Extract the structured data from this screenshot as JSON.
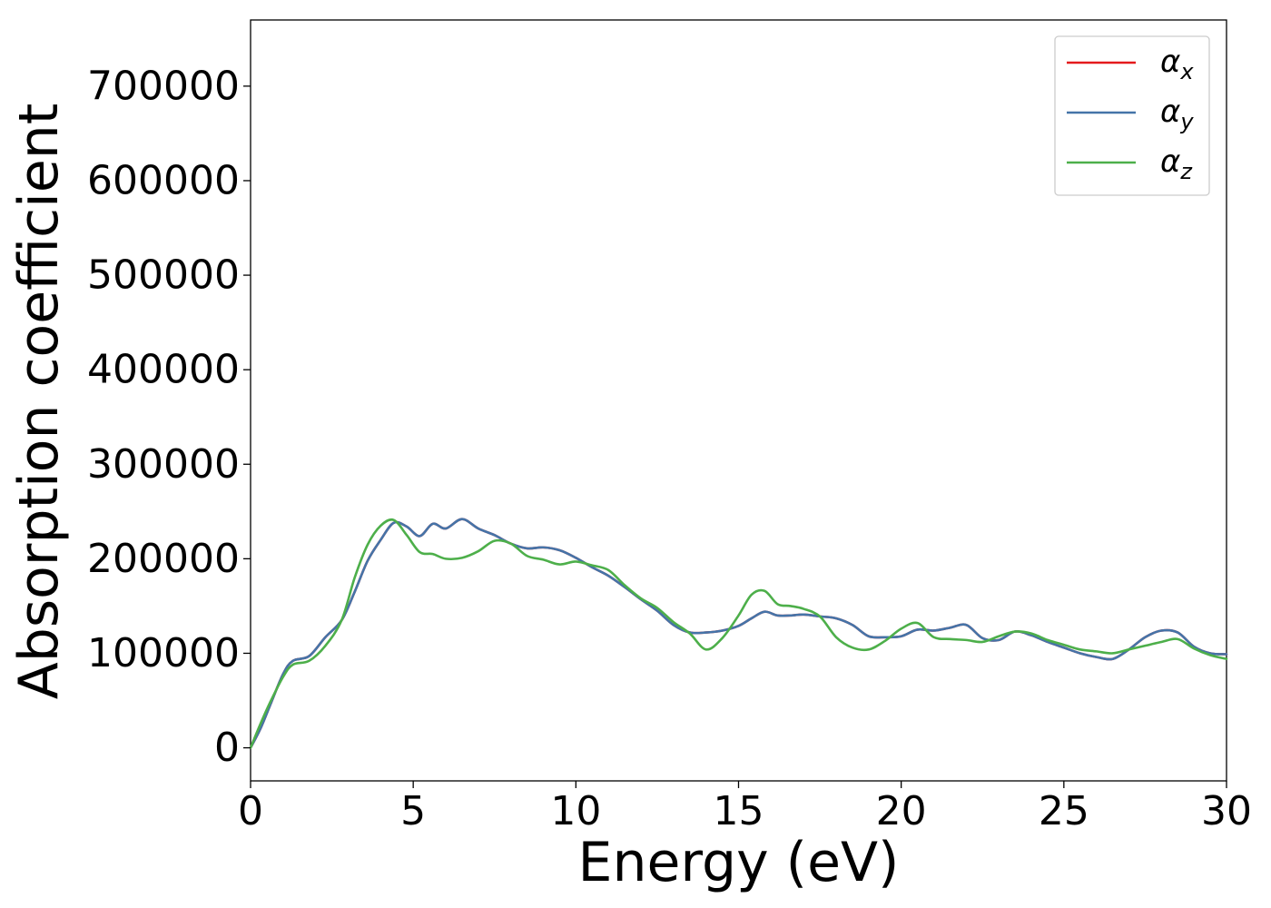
{
  "chart_data": {
    "type": "line",
    "title": "",
    "xlabel": "Energy (eV)",
    "ylabel": "Absorption coefficient",
    "xlim": [
      0,
      30
    ],
    "ylim": [
      -35000,
      770000
    ],
    "xticks": [
      0,
      5,
      10,
      15,
      20,
      25,
      30
    ],
    "xtick_labels": [
      "0",
      "5",
      "10",
      "15",
      "20",
      "25",
      "30"
    ],
    "yticks": [
      0,
      100000,
      200000,
      300000,
      400000,
      500000,
      600000,
      700000
    ],
    "ytick_labels": [
      "0",
      "100000",
      "200000",
      "300000",
      "400000",
      "500000",
      "600000",
      "700000"
    ],
    "grid": false,
    "legend_position": "top-right",
    "series": [
      {
        "name": "αx",
        "legend_main": "α",
        "legend_sub": "x",
        "color": "#e41a1c",
        "x": [
          0,
          0.3,
          0.6,
          1.0,
          1.3,
          1.8,
          2.3,
          2.8,
          3.2,
          3.6,
          4.0,
          4.4,
          4.8,
          5.2,
          5.6,
          6.0,
          6.5,
          7.0,
          7.5,
          8.0,
          8.5,
          9.0,
          9.5,
          10.0,
          10.5,
          11.0,
          11.5,
          12.0,
          12.5,
          13.0,
          13.5,
          14.0,
          14.5,
          15.0,
          15.4,
          15.8,
          16.2,
          16.6,
          17.0,
          17.5,
          18.0,
          18.5,
          19.0,
          19.5,
          20.0,
          20.5,
          21.0,
          21.5,
          22.0,
          22.5,
          23.0,
          23.5,
          24.0,
          24.5,
          25.0,
          25.5,
          26.0,
          26.5,
          27.0,
          27.5,
          28.0,
          28.5,
          29.0,
          29.5,
          30.0
        ],
        "values": [
          0,
          20000,
          45000,
          78000,
          92000,
          97000,
          117000,
          135000,
          165000,
          198000,
          220000,
          238000,
          234000,
          224000,
          237000,
          232000,
          242000,
          232000,
          225000,
          216000,
          211000,
          212000,
          209000,
          201000,
          191000,
          182000,
          170000,
          157000,
          145000,
          130000,
          122000,
          122000,
          124000,
          129000,
          137000,
          144000,
          140000,
          140000,
          141000,
          139000,
          137000,
          130000,
          118000,
          117000,
          118000,
          125000,
          124000,
          127000,
          130000,
          116000,
          114000,
          123000,
          119000,
          112000,
          106000,
          100000,
          96000,
          94000,
          104000,
          117000,
          124000,
          122000,
          107000,
          100000,
          99000
        ]
      },
      {
        "name": "αy",
        "legend_main": "α",
        "legend_sub": "y",
        "color": "#4574a8",
        "x": [
          0,
          0.3,
          0.6,
          1.0,
          1.3,
          1.8,
          2.3,
          2.8,
          3.2,
          3.6,
          4.0,
          4.4,
          4.8,
          5.2,
          5.6,
          6.0,
          6.5,
          7.0,
          7.5,
          8.0,
          8.5,
          9.0,
          9.5,
          10.0,
          10.5,
          11.0,
          11.5,
          12.0,
          12.5,
          13.0,
          13.5,
          14.0,
          14.5,
          15.0,
          15.4,
          15.8,
          16.2,
          16.6,
          17.0,
          17.5,
          18.0,
          18.5,
          19.0,
          19.5,
          20.0,
          20.5,
          21.0,
          21.5,
          22.0,
          22.5,
          23.0,
          23.5,
          24.0,
          24.5,
          25.0,
          25.5,
          26.0,
          26.5,
          27.0,
          27.5,
          28.0,
          28.5,
          29.0,
          29.5,
          30.0
        ],
        "values": [
          0,
          20000,
          45000,
          78000,
          92000,
          97000,
          117000,
          135000,
          165000,
          198000,
          220000,
          238000,
          234000,
          224000,
          237000,
          232000,
          242000,
          232000,
          225000,
          216000,
          211000,
          212000,
          209000,
          201000,
          191000,
          182000,
          170000,
          157000,
          145000,
          130000,
          122000,
          122000,
          124000,
          129000,
          137000,
          144000,
          140000,
          140000,
          141000,
          139000,
          137000,
          130000,
          118000,
          117000,
          118000,
          125000,
          124000,
          127000,
          130000,
          116000,
          114000,
          123000,
          119000,
          112000,
          106000,
          100000,
          96000,
          94000,
          104000,
          117000,
          124000,
          122000,
          107000,
          100000,
          99000
        ]
      },
      {
        "name": "αz",
        "legend_main": "α",
        "legend_sub": "z",
        "color": "#4daf4a",
        "x": [
          0,
          0.3,
          0.6,
          1.0,
          1.3,
          1.8,
          2.3,
          2.8,
          3.2,
          3.6,
          4.0,
          4.4,
          4.8,
          5.2,
          5.6,
          6.0,
          6.5,
          7.0,
          7.5,
          8.0,
          8.5,
          9.0,
          9.5,
          10.0,
          10.5,
          11.0,
          11.5,
          12.0,
          12.5,
          13.0,
          13.5,
          14.0,
          14.5,
          15.0,
          15.4,
          15.8,
          16.2,
          16.6,
          17.0,
          17.5,
          18.0,
          18.5,
          19.0,
          19.5,
          20.0,
          20.5,
          21.0,
          21.5,
          22.0,
          22.5,
          23.0,
          23.5,
          24.0,
          24.5,
          25.0,
          25.5,
          26.0,
          26.5,
          27.0,
          27.5,
          28.0,
          28.5,
          29.0,
          29.5,
          30.0
        ],
        "values": [
          0,
          25000,
          48000,
          75000,
          88000,
          92000,
          108000,
          135000,
          180000,
          215000,
          235000,
          241000,
          225000,
          207000,
          205000,
          200000,
          201000,
          208000,
          219000,
          216000,
          203000,
          199000,
          194000,
          197000,
          193000,
          188000,
          172000,
          158000,
          148000,
          133000,
          121000,
          104000,
          116000,
          140000,
          162000,
          166000,
          152000,
          150000,
          147000,
          139000,
          117000,
          106000,
          104000,
          113000,
          126000,
          132000,
          117000,
          115000,
          114000,
          112000,
          118000,
          123000,
          121000,
          114000,
          109000,
          104000,
          102000,
          100000,
          104000,
          108000,
          112000,
          115000,
          105000,
          98000,
          94000
        ]
      }
    ]
  }
}
